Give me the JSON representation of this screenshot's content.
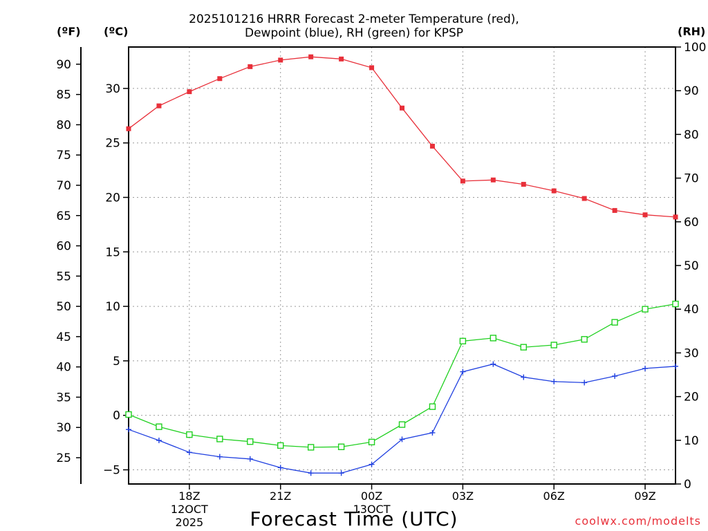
{
  "title": {
    "line1": "2025101216 HRRR Forecast 2-meter Temperature (red),",
    "line2": "Dewpoint (blue), RH (green) for KPSP"
  },
  "units": {
    "fahrenheit": "(ºF)",
    "celsius": "(ºC)",
    "rh": "(RH)"
  },
  "xlabel": "Forecast Time (UTC)",
  "credit": "coolwx.com/modelts",
  "colors": {
    "temperature": "#e8303a",
    "dewpoint": "#2040e0",
    "rh": "#20d020",
    "grid": "#999999"
  },
  "chart_data": {
    "type": "line",
    "title": "2025101216 HRRR Forecast 2-meter Temperature (red), Dewpoint (blue), RH (green) for KPSP",
    "xlabel": "Forecast Time (UTC)",
    "x_hours": [
      0,
      1,
      2,
      3,
      4,
      5,
      6,
      7,
      8,
      9,
      10,
      11,
      12,
      13,
      14,
      15,
      16,
      17,
      18
    ],
    "xlim": [
      0,
      18
    ],
    "x_ticks": [
      {
        "hour": 2,
        "label": "18Z",
        "sub": [
          "12OCT",
          "2025"
        ]
      },
      {
        "hour": 5,
        "label": "21Z",
        "sub": []
      },
      {
        "hour": 8,
        "label": "00Z",
        "sub": [
          "13OCT"
        ]
      },
      {
        "hour": 11,
        "label": "03Z",
        "sub": []
      },
      {
        "hour": 14,
        "label": "06Z",
        "sub": []
      },
      {
        "hour": 17,
        "label": "09Z",
        "sub": []
      }
    ],
    "left_axis_f": {
      "label": "(ºF)",
      "ticks": [
        25,
        30,
        35,
        40,
        45,
        50,
        55,
        60,
        65,
        70,
        75,
        80,
        85,
        90
      ]
    },
    "left_axis_c": {
      "label": "(ºC)",
      "ylim": [
        -6.3,
        33.8
      ],
      "ticks": [
        -5,
        0,
        5,
        10,
        15,
        20,
        25,
        30
      ]
    },
    "right_axis_rh": {
      "label": "(RH)",
      "ylim": [
        0,
        100
      ],
      "ticks": [
        0,
        10,
        20,
        30,
        40,
        50,
        60,
        70,
        80,
        90,
        100
      ]
    },
    "series": [
      {
        "name": "Temperature",
        "axis": "celsius",
        "marker": "filled-square",
        "color": "#e8303a",
        "values": [
          26.3,
          28.4,
          29.7,
          30.9,
          32.0,
          32.6,
          32.9,
          32.7,
          31.9,
          28.2,
          24.7,
          21.5,
          21.6,
          21.2,
          20.6,
          19.9,
          18.8,
          18.4,
          18.2
        ]
      },
      {
        "name": "Dewpoint",
        "axis": "celsius",
        "marker": "plus",
        "color": "#2040e0",
        "values": [
          -1.3,
          -2.3,
          -3.4,
          -3.8,
          -4.0,
          -4.8,
          -5.3,
          -5.3,
          -4.5,
          -2.2,
          -1.6,
          4.0,
          4.7,
          3.5,
          3.1,
          3.0,
          3.6,
          4.3,
          4.5
        ]
      },
      {
        "name": "RH",
        "axis": "rh",
        "marker": "open-square",
        "color": "#20d020",
        "values": [
          15.9,
          13.1,
          11.3,
          10.3,
          9.7,
          8.8,
          8.4,
          8.5,
          9.6,
          13.6,
          17.7,
          32.7,
          33.4,
          31.3,
          31.8,
          33.1,
          37.0,
          40.0,
          41.2
        ]
      }
    ]
  }
}
